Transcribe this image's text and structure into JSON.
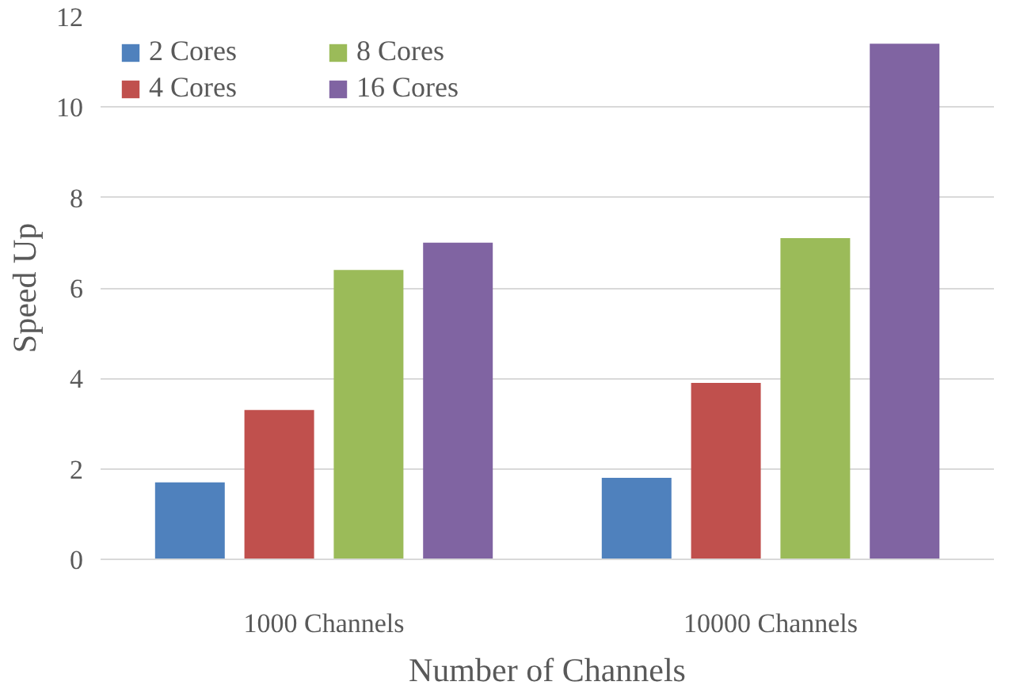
{
  "chart_data": {
    "type": "bar",
    "xlabel": "Number of Channels",
    "ylabel": "Speed Up",
    "categories": [
      "1000 Channels",
      "10000 Channels"
    ],
    "series": [
      {
        "name": "2 Cores",
        "color": "#4f81bd",
        "values": [
          1.7,
          1.8
        ]
      },
      {
        "name": "4 Cores",
        "color": "#c0504d",
        "values": [
          3.3,
          3.9
        ]
      },
      {
        "name": "8 Cores",
        "color": "#9bbb59",
        "values": [
          6.4,
          7.1
        ]
      },
      {
        "name": "16 Cores",
        "color": "#8064a2",
        "values": [
          7.0,
          11.4
        ]
      }
    ],
    "ylim": [
      0,
      12
    ],
    "yticks": [
      0,
      2,
      4,
      6,
      8,
      10,
      12
    ],
    "grid": "y",
    "legend": "top left"
  }
}
